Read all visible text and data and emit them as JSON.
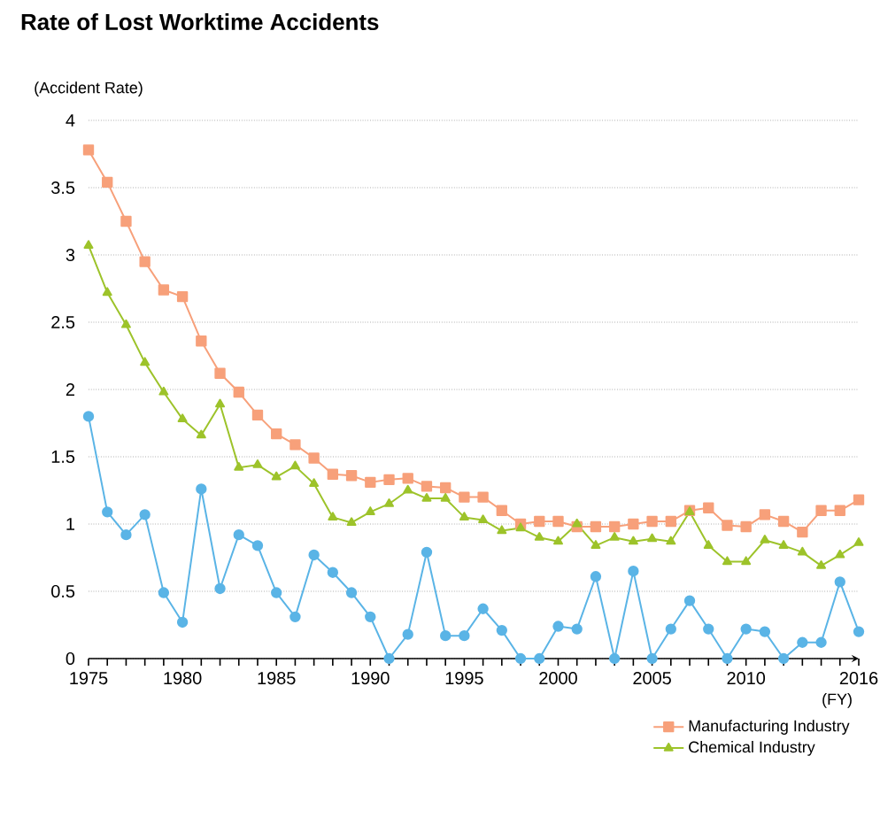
{
  "chart_data": {
    "type": "line",
    "title": "Rate of Lost Worktime Accidents",
    "ylabel": "(Accident Rate)",
    "xlabel": "(FY)",
    "x": [
      1975,
      1976,
      1977,
      1978,
      1979,
      1980,
      1981,
      1982,
      1983,
      1984,
      1985,
      1986,
      1987,
      1988,
      1989,
      1990,
      1991,
      1992,
      1993,
      1994,
      1995,
      1996,
      1997,
      1998,
      1999,
      2000,
      2001,
      2002,
      2003,
      2004,
      2005,
      2006,
      2007,
      2008,
      2009,
      2010,
      2011,
      2012,
      2013,
      2014,
      2015,
      2016
    ],
    "series": [
      {
        "name": "Manufacturing Industry",
        "color": "#f7a07a",
        "marker": "square",
        "values": [
          3.78,
          3.54,
          3.25,
          2.95,
          2.74,
          2.69,
          2.36,
          2.12,
          1.98,
          1.81,
          1.67,
          1.59,
          1.49,
          1.37,
          1.36,
          1.31,
          1.33,
          1.34,
          1.28,
          1.27,
          1.2,
          1.2,
          1.1,
          1.0,
          1.02,
          1.02,
          0.98,
          0.98,
          0.98,
          1.0,
          1.02,
          1.02,
          1.1,
          1.12,
          0.99,
          0.98,
          1.07,
          1.02,
          0.94,
          1.1,
          1.1,
          1.18
        ]
      },
      {
        "name": "Chemical Industry",
        "color": "#9dc32a",
        "marker": "triangle",
        "values": [
          3.07,
          2.72,
          2.48,
          2.2,
          1.98,
          1.78,
          1.66,
          1.89,
          1.42,
          1.44,
          1.35,
          1.43,
          1.3,
          1.05,
          1.01,
          1.09,
          1.15,
          1.25,
          1.19,
          1.19,
          1.05,
          1.03,
          0.95,
          0.97,
          0.9,
          0.87,
          1.0,
          0.84,
          0.9,
          0.87,
          0.89,
          0.87,
          1.09,
          0.84,
          0.72,
          0.72,
          0.88,
          0.84,
          0.79,
          0.69,
          0.77,
          0.86
        ]
      },
      {
        "color": "#5ab4e6",
        "marker": "circle",
        "values": [
          1.8,
          1.09,
          0.92,
          1.07,
          0.49,
          0.27,
          1.26,
          0.52,
          0.92,
          0.84,
          0.49,
          0.31,
          0.77,
          0.64,
          0.49,
          0.31,
          0.0,
          0.18,
          0.79,
          0.17,
          0.17,
          0.37,
          0.21,
          0.0,
          0.0,
          0.24,
          0.22,
          0.61,
          0.0,
          0.65,
          0.0,
          0.22,
          0.43,
          0.22,
          0.0,
          0.22,
          0.2,
          0.0,
          0.12,
          0.12,
          0.57,
          0.2
        ]
      }
    ],
    "xlim": [
      1975,
      2016
    ],
    "xticks": [
      1975,
      {
        "value": 1976,
        "label": null
      },
      {
        "value": 1977,
        "label": null
      },
      {
        "value": 1978,
        "label": null
      },
      {
        "value": 1979,
        "label": null
      },
      1980,
      {
        "value": 1981,
        "label": null
      },
      {
        "value": 1982,
        "label": null
      },
      {
        "value": 1983,
        "label": null
      },
      {
        "value": 1984,
        "label": null
      },
      1985,
      {
        "value": 1986,
        "label": null
      },
      {
        "value": 1987,
        "label": null
      },
      {
        "value": 1988,
        "label": null
      },
      {
        "value": 1989,
        "label": null
      },
      1990,
      {
        "value": 1991,
        "label": null
      },
      {
        "value": 1992,
        "label": null
      },
      {
        "value": 1993,
        "label": null
      },
      {
        "value": 1994,
        "label": null
      },
      1995,
      {
        "value": 1996,
        "label": null
      },
      {
        "value": 1997,
        "label": null
      },
      {
        "value": 1998,
        "label": null
      },
      {
        "value": 1999,
        "label": null
      },
      2000,
      {
        "value": 2001,
        "label": null
      },
      {
        "value": 2002,
        "label": null
      },
      {
        "value": 2003,
        "label": null
      },
      {
        "value": 2004,
        "label": null
      },
      2005,
      {
        "value": 2006,
        "label": null
      },
      {
        "value": 2007,
        "label": null
      },
      {
        "value": 2008,
        "label": null
      },
      {
        "value": 2009,
        "label": null
      },
      2010,
      {
        "value": 2011,
        "label": null
      },
      {
        "value": 2012,
        "label": null
      },
      {
        "value": 2013,
        "label": null
      },
      {
        "value": 2014,
        "label": null
      },
      {
        "value": 2015,
        "label": null
      },
      2016
    ],
    "ylim": [
      0,
      4
    ],
    "yticks": [
      0,
      0.5,
      1,
      1.5,
      2,
      2.5,
      3,
      3.5,
      4
    ],
    "grid": "y",
    "legend": "bottom right",
    "line_style": "solid"
  }
}
